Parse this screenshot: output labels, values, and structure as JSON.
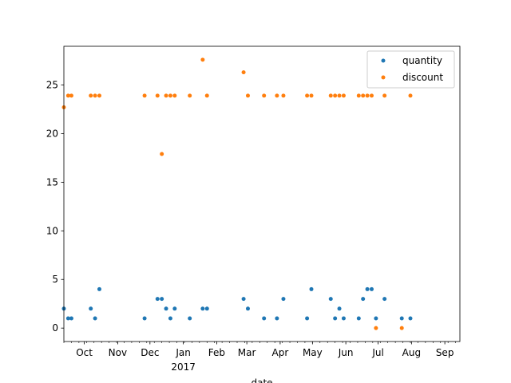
{
  "chart_data": {
    "type": "scatter",
    "title": "",
    "xlabel": "date",
    "ylabel": "",
    "xlim": [
      "2016-09-12",
      "2017-09-15"
    ],
    "ylim": [
      -1.38,
      28.98
    ],
    "y_ticks": [
      0,
      5,
      10,
      15,
      20,
      25
    ],
    "x_month_ticks": [
      {
        "date": "2016-10-01",
        "label": "Oct"
      },
      {
        "date": "2016-11-01",
        "label": "Nov"
      },
      {
        "date": "2016-12-01",
        "label": "Dec"
      },
      {
        "date": "2017-01-01",
        "label": "Jan",
        "sublabel": "2017"
      },
      {
        "date": "2017-02-01",
        "label": "Feb"
      },
      {
        "date": "2017-03-01",
        "label": "Mar"
      },
      {
        "date": "2017-04-01",
        "label": "Apr"
      },
      {
        "date": "2017-05-01",
        "label": "May"
      },
      {
        "date": "2017-06-01",
        "label": "Jun"
      },
      {
        "date": "2017-07-01",
        "label": "Jul"
      },
      {
        "date": "2017-08-01",
        "label": "Aug"
      },
      {
        "date": "2017-09-01",
        "label": "Sep"
      }
    ],
    "grid": false,
    "legend": "top-right",
    "series": [
      {
        "name": "quantity",
        "color": "#1f77b4",
        "points": [
          [
            "2016-09-12",
            2
          ],
          [
            "2016-09-16",
            1
          ],
          [
            "2016-09-19",
            1
          ],
          [
            "2016-10-07",
            2
          ],
          [
            "2016-10-11",
            1
          ],
          [
            "2016-10-15",
            4
          ],
          [
            "2016-11-26",
            1
          ],
          [
            "2016-12-08",
            3
          ],
          [
            "2016-12-12",
            3
          ],
          [
            "2016-12-16",
            2
          ],
          [
            "2016-12-20",
            1
          ],
          [
            "2016-12-24",
            2
          ],
          [
            "2017-01-07",
            1
          ],
          [
            "2017-01-19",
            2
          ],
          [
            "2017-01-23",
            2
          ],
          [
            "2017-02-26",
            3
          ],
          [
            "2017-03-02",
            2
          ],
          [
            "2017-03-17",
            1
          ],
          [
            "2017-03-29",
            1
          ],
          [
            "2017-04-04",
            3
          ],
          [
            "2017-04-26",
            1
          ],
          [
            "2017-04-30",
            4
          ],
          [
            "2017-05-18",
            3
          ],
          [
            "2017-05-22",
            1
          ],
          [
            "2017-05-26",
            2
          ],
          [
            "2017-05-30",
            1
          ],
          [
            "2017-06-13",
            1
          ],
          [
            "2017-06-17",
            3
          ],
          [
            "2017-06-21",
            4
          ],
          [
            "2017-06-25",
            4
          ],
          [
            "2017-06-29",
            1
          ],
          [
            "2017-07-07",
            3
          ],
          [
            "2017-07-23",
            1
          ],
          [
            "2017-07-31",
            1
          ]
        ]
      },
      {
        "name": "discount",
        "color": "#ff7f0e",
        "points": [
          [
            "2016-09-12",
            22.7
          ],
          [
            "2016-09-16",
            23.9
          ],
          [
            "2016-09-19",
            23.9
          ],
          [
            "2016-10-07",
            23.9
          ],
          [
            "2016-10-11",
            23.9
          ],
          [
            "2016-10-15",
            23.9
          ],
          [
            "2016-11-26",
            23.9
          ],
          [
            "2016-12-08",
            23.9
          ],
          [
            "2016-12-12",
            17.9
          ],
          [
            "2016-12-16",
            23.9
          ],
          [
            "2016-12-20",
            23.9
          ],
          [
            "2016-12-24",
            23.9
          ],
          [
            "2017-01-07",
            23.9
          ],
          [
            "2017-01-19",
            27.6
          ],
          [
            "2017-01-23",
            23.9
          ],
          [
            "2017-02-26",
            26.3
          ],
          [
            "2017-03-02",
            23.9
          ],
          [
            "2017-03-17",
            23.9
          ],
          [
            "2017-03-29",
            23.9
          ],
          [
            "2017-04-04",
            23.9
          ],
          [
            "2017-04-26",
            23.9
          ],
          [
            "2017-04-30",
            23.9
          ],
          [
            "2017-05-18",
            23.9
          ],
          [
            "2017-05-22",
            23.9
          ],
          [
            "2017-05-26",
            23.9
          ],
          [
            "2017-05-30",
            23.9
          ],
          [
            "2017-06-13",
            23.9
          ],
          [
            "2017-06-17",
            23.9
          ],
          [
            "2017-06-21",
            23.9
          ],
          [
            "2017-06-25",
            23.9
          ],
          [
            "2017-06-29",
            0
          ],
          [
            "2017-07-07",
            23.9
          ],
          [
            "2017-07-23",
            0
          ],
          [
            "2017-07-31",
            23.9
          ]
        ]
      }
    ]
  }
}
